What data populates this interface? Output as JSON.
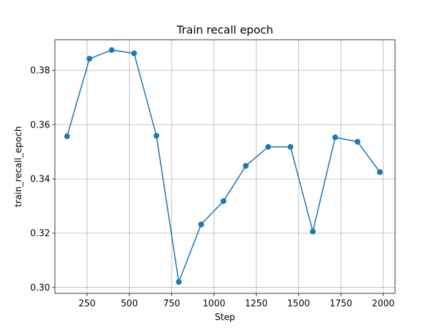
{
  "chart_data": {
    "type": "line",
    "title": "Train recall epoch",
    "xlabel": "Step",
    "ylabel": "train_recall_epoch",
    "xlim": [
      60,
      2070
    ],
    "ylim": [
      0.2978,
      0.3913
    ],
    "xticks": [
      250,
      500,
      750,
      1000,
      1250,
      1500,
      1750,
      2000
    ],
    "xtick_labels": [
      "250",
      "500",
      "750",
      "1000",
      "1250",
      "1500",
      "1750",
      "2000"
    ],
    "yticks": [
      0.3,
      0.32,
      0.34,
      0.36,
      0.38
    ],
    "ytick_labels": [
      "0.30",
      "0.32",
      "0.34",
      "0.36",
      "0.38"
    ],
    "grid": true,
    "series": [
      {
        "color": "#1f77b4",
        "marker": "circle",
        "x": [
          132,
          264,
          396,
          528,
          660,
          792,
          924,
          1056,
          1188,
          1320,
          1452,
          1584,
          1716,
          1848,
          1980
        ],
        "y": [
          0.3557,
          0.3843,
          0.3875,
          0.3863,
          0.3559,
          0.302,
          0.3232,
          0.3318,
          0.3448,
          0.3518,
          0.3518,
          0.3206,
          0.3553,
          0.3537,
          0.3425
        ]
      }
    ]
  }
}
